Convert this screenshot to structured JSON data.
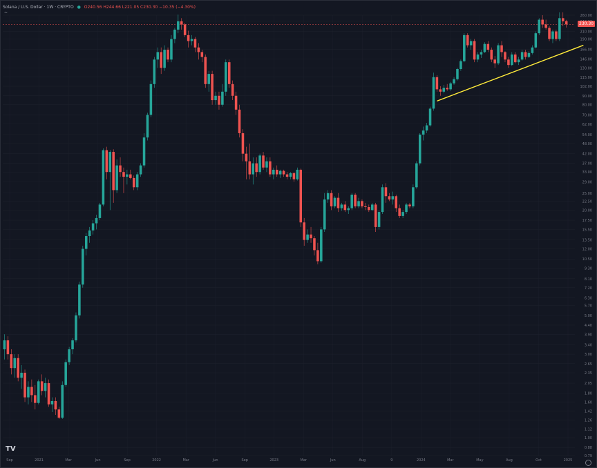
{
  "header": {
    "symbol": "Solana / U.S. Dollar · 1W · CRYPTO",
    "ohlc": "O240.56 H244.66 L221.05 C230.30 −10.35 (−4.30%)",
    "indicator": "~ ",
    "current_price_tag": "230.30"
  },
  "logo_text": "TV",
  "chart_data": {
    "type": "candlestick",
    "scale": "log",
    "ylim": [
      0.79,
      260.0
    ],
    "y_ticks": [
      "260.00",
      "240.00",
      "210.00",
      "190.00",
      "166.00",
      "146.00",
      "130.00",
      "115.00",
      "102.00",
      "90.00",
      "80.00",
      "70.00",
      "62.00",
      "54.00",
      "48.00",
      "42.00",
      "37.00",
      "33.00",
      "29.00",
      "25.00",
      "22.50",
      "20.00",
      "17.50",
      "15.50",
      "13.50",
      "12.00",
      "10.50",
      "9.30",
      "8.10",
      "7.20",
      "6.30",
      "5.70",
      "5.00",
      "4.40",
      "3.90",
      "3.40",
      "3.00",
      "2.65",
      "2.35",
      "2.05",
      "1.80",
      "1.60",
      "1.42",
      "1.26",
      "1.12",
      "1.00",
      "0.88",
      "0.79"
    ],
    "x_ticks": [
      "Sep",
      "2021",
      "Mar",
      "Jun",
      "Sep",
      "2022",
      "Mar",
      "Jun",
      "Sep",
      "2023",
      "Mar",
      "Jun",
      "Aug",
      "9",
      "2024",
      "Mar",
      "May",
      "Aug",
      "Oct",
      "2025"
    ],
    "candles": [
      [
        3.2,
        3.9,
        2.8,
        3.6
      ],
      [
        3.6,
        3.8,
        2.8,
        3.0
      ],
      [
        3.0,
        3.2,
        2.3,
        2.5
      ],
      [
        2.5,
        3.0,
        2.2,
        2.85
      ],
      [
        2.85,
        3.0,
        2.1,
        2.2
      ],
      [
        2.2,
        2.6,
        1.9,
        2.35
      ],
      [
        2.35,
        2.45,
        1.6,
        1.7
      ],
      [
        1.7,
        2.1,
        1.55,
        1.95
      ],
      [
        1.95,
        2.15,
        1.6,
        1.75
      ],
      [
        1.75,
        2.0,
        1.45,
        1.58
      ],
      [
        1.58,
        2.15,
        1.55,
        2.1
      ],
      [
        2.1,
        2.3,
        1.75,
        1.85
      ],
      [
        1.85,
        2.2,
        1.7,
        2.05
      ],
      [
        2.05,
        2.15,
        1.5,
        1.55
      ],
      [
        1.55,
        1.7,
        1.4,
        1.62
      ],
      [
        1.62,
        1.7,
        1.35,
        1.45
      ],
      [
        1.45,
        1.5,
        1.28,
        1.3
      ],
      [
        1.3,
        2.1,
        1.28,
        2.0
      ],
      [
        2.0,
        2.8,
        1.95,
        2.7
      ],
      [
        2.7,
        3.3,
        2.6,
        3.2
      ],
      [
        3.2,
        3.7,
        3.0,
        3.6
      ],
      [
        3.6,
        5.2,
        3.5,
        5.0
      ],
      [
        5.0,
        7.8,
        4.8,
        7.5
      ],
      [
        7.5,
        12.5,
        7.2,
        12.0
      ],
      [
        12.0,
        14.8,
        11.0,
        14.2
      ],
      [
        14.2,
        16.0,
        13.0,
        15.3
      ],
      [
        15.3,
        17.5,
        14.5,
        16.8
      ],
      [
        16.8,
        18.8,
        15.5,
        18.0
      ],
      [
        18.0,
        22.0,
        17.5,
        21.5
      ],
      [
        21.5,
        45.0,
        21.0,
        44.0
      ],
      [
        44.0,
        46.0,
        30.0,
        33.0
      ],
      [
        33.0,
        44.0,
        20.0,
        43.0
      ],
      [
        43.0,
        44.5,
        22.0,
        26.0
      ],
      [
        26.0,
        39.0,
        25.0,
        36.0
      ],
      [
        36.0,
        40.0,
        31.0,
        33.0
      ],
      [
        33.0,
        35.0,
        25.0,
        31.0
      ],
      [
        31.0,
        34.0,
        28.0,
        32.0
      ],
      [
        32.0,
        34.0,
        30.0,
        30.5
      ],
      [
        30.5,
        31.5,
        26.0,
        27.0
      ],
      [
        27.0,
        33.0,
        26.0,
        32.0
      ],
      [
        32.0,
        37.0,
        31.0,
        36.0
      ],
      [
        36.0,
        55.0,
        35.0,
        52.0
      ],
      [
        52.0,
        72.0,
        50.0,
        70.0
      ],
      [
        70.0,
        110.0,
        68.0,
        105.0
      ],
      [
        105.0,
        150.0,
        100.0,
        145.0
      ],
      [
        145.0,
        170.0,
        130.0,
        160.0
      ],
      [
        160.0,
        170.0,
        120.0,
        130.0
      ],
      [
        130.0,
        175.0,
        125.0,
        165.0
      ],
      [
        165.0,
        170.0,
        140.0,
        145.0
      ],
      [
        145.0,
        200.0,
        140.0,
        190.0
      ],
      [
        190.0,
        220.0,
        180.0,
        215.0
      ],
      [
        215.0,
        262.0,
        205.0,
        240.0
      ],
      [
        240.0,
        250.0,
        215.0,
        230.0
      ],
      [
        230.0,
        235.0,
        195.0,
        200.0
      ],
      [
        200.0,
        212.0,
        170.0,
        185.0
      ],
      [
        185.0,
        200.0,
        175.0,
        190.0
      ],
      [
        190.0,
        195.0,
        160.0,
        170.0
      ],
      [
        170.0,
        180.0,
        145.0,
        160.0
      ],
      [
        160.0,
        165.0,
        140.0,
        150.0
      ],
      [
        150.0,
        155.0,
        100.0,
        105.0
      ],
      [
        105.0,
        125.0,
        95.0,
        120.0
      ],
      [
        120.0,
        125.0,
        80.0,
        85.0
      ],
      [
        85.0,
        95.0,
        80.0,
        90.0
      ],
      [
        90.0,
        95.0,
        75.0,
        80.0
      ],
      [
        80.0,
        105.0,
        78.0,
        95.0
      ],
      [
        95.0,
        145.0,
        90.0,
        140.0
      ],
      [
        140.0,
        145.0,
        100.0,
        105.0
      ],
      [
        105.0,
        110.0,
        85.0,
        90.0
      ],
      [
        90.0,
        95.0,
        70.0,
        75.0
      ],
      [
        75.0,
        80.0,
        52.0,
        55.0
      ],
      [
        55.0,
        58.0,
        38.0,
        42.0
      ],
      [
        42.0,
        46.0,
        30.0,
        38.0
      ],
      [
        38.0,
        48.0,
        30.0,
        32.0
      ],
      [
        32.0,
        40.0,
        28.0,
        37.0
      ],
      [
        37.0,
        40.0,
        31.0,
        33.0
      ],
      [
        33.0,
        42.0,
        32.0,
        41.0
      ],
      [
        41.0,
        43.0,
        34.0,
        35.0
      ],
      [
        35.0,
        40.0,
        33.0,
        38.0
      ],
      [
        38.0,
        40.0,
        31.0,
        32.0
      ],
      [
        32.0,
        35.0,
        30.0,
        34.0
      ],
      [
        34.0,
        36.0,
        31.0,
        32.0
      ],
      [
        32.0,
        34.0,
        30.5,
        33.5
      ],
      [
        33.5,
        34.0,
        31.0,
        32.0
      ],
      [
        32.0,
        33.0,
        30.0,
        31.0
      ],
      [
        31.0,
        33.0,
        30.0,
        32.5
      ],
      [
        32.5,
        33.0,
        29.0,
        30.0
      ],
      [
        30.0,
        35.0,
        29.5,
        34.0
      ],
      [
        34.0,
        34.5,
        16.0,
        17.0
      ],
      [
        17.0,
        18.0,
        12.5,
        13.5
      ],
      [
        13.5,
        15.5,
        13.0,
        14.5
      ],
      [
        14.5,
        16.0,
        13.0,
        13.8
      ],
      [
        13.8,
        14.2,
        11.0,
        11.8
      ],
      [
        11.8,
        13.0,
        9.8,
        10.2
      ],
      [
        10.2,
        16.0,
        10.0,
        15.5
      ],
      [
        15.5,
        25.0,
        15.0,
        23.0
      ],
      [
        23.0,
        26.0,
        22.0,
        25.0
      ],
      [
        25.0,
        26.0,
        20.0,
        21.0
      ],
      [
        21.0,
        24.0,
        20.5,
        23.5
      ],
      [
        23.5,
        25.0,
        19.5,
        20.5
      ],
      [
        20.5,
        22.0,
        19.8,
        21.5
      ],
      [
        21.5,
        22.5,
        19.5,
        20.0
      ],
      [
        20.0,
        21.0,
        19.0,
        20.5
      ],
      [
        20.5,
        25.0,
        20.0,
        24.5
      ],
      [
        24.5,
        25.0,
        20.5,
        21.0
      ],
      [
        21.0,
        23.5,
        20.5,
        22.5
      ],
      [
        22.5,
        23.0,
        20.5,
        21.0
      ],
      [
        21.0,
        22.0,
        20.0,
        20.8
      ],
      [
        20.8,
        21.5,
        19.5,
        20.0
      ],
      [
        20.0,
        22.0,
        19.8,
        21.5
      ],
      [
        21.5,
        22.0,
        15.0,
        16.0
      ],
      [
        16.0,
        20.0,
        15.5,
        19.5
      ],
      [
        19.5,
        28.0,
        19.0,
        27.0
      ],
      [
        27.0,
        28.5,
        22.0,
        24.0
      ],
      [
        24.0,
        25.0,
        22.5,
        23.0
      ],
      [
        23.0,
        25.5,
        21.5,
        24.0
      ],
      [
        24.0,
        24.5,
        19.5,
        20.5
      ],
      [
        20.5,
        21.5,
        18.0,
        18.5
      ],
      [
        18.5,
        20.0,
        18.0,
        19.5
      ],
      [
        19.5,
        22.0,
        19.0,
        21.5
      ],
      [
        21.5,
        22.0,
        20.5,
        21.0
      ],
      [
        21.0,
        28.0,
        20.5,
        27.0
      ],
      [
        27.0,
        38.0,
        26.5,
        37.0
      ],
      [
        37.0,
        55.0,
        36.0,
        54.0
      ],
      [
        54.0,
        60.0,
        50.0,
        57.0
      ],
      [
        57.0,
        63.0,
        55.0,
        61.0
      ],
      [
        61.0,
        78.0,
        60.0,
        76.0
      ],
      [
        76.0,
        122.0,
        74.0,
        115.0
      ],
      [
        115.0,
        118.0,
        95.0,
        98.0
      ],
      [
        98.0,
        102.0,
        90.0,
        95.0
      ],
      [
        95.0,
        104.0,
        93.0,
        100.0
      ],
      [
        100.0,
        105.0,
        96.0,
        98.0
      ],
      [
        98.0,
        108.0,
        96.0,
        106.0
      ],
      [
        106.0,
        115.0,
        104.0,
        112.0
      ],
      [
        112.0,
        130.0,
        110.0,
        128.0
      ],
      [
        128.0,
        145.0,
        125.0,
        142.0
      ],
      [
        142.0,
        205.0,
        140.0,
        200.0
      ],
      [
        200.0,
        205.0,
        170.0,
        175.0
      ],
      [
        175.0,
        190.0,
        165.0,
        185.0
      ],
      [
        185.0,
        190.0,
        140.0,
        145.0
      ],
      [
        145.0,
        160.0,
        140.0,
        155.0
      ],
      [
        155.0,
        165.0,
        148.0,
        160.0
      ],
      [
        160.0,
        182.0,
        158.0,
        178.0
      ],
      [
        178.0,
        185.0,
        160.0,
        165.0
      ],
      [
        165.0,
        170.0,
        140.0,
        145.0
      ],
      [
        145.0,
        152.0,
        130.0,
        138.0
      ],
      [
        138.0,
        180.0,
        135.0,
        175.0
      ],
      [
        175.0,
        185.0,
        150.0,
        160.0
      ],
      [
        160.0,
        162.0,
        140.0,
        145.0
      ],
      [
        145.0,
        150.0,
        130.0,
        135.0
      ],
      [
        135.0,
        160.0,
        133.0,
        155.0
      ],
      [
        155.0,
        160.0,
        138.0,
        140.0
      ],
      [
        140.0,
        150.0,
        135.0,
        145.0
      ],
      [
        145.0,
        165.0,
        143.0,
        160.0
      ],
      [
        160.0,
        165.0,
        145.0,
        150.0
      ],
      [
        150.0,
        162.0,
        148.0,
        158.0
      ],
      [
        158.0,
        175.0,
        155.0,
        170.0
      ],
      [
        170.0,
        210.0,
        168.0,
        205.0
      ],
      [
        205.0,
        250.0,
        200.0,
        245.0
      ],
      [
        245.0,
        260.0,
        220.0,
        230.0
      ],
      [
        230.0,
        245.0,
        215.0,
        220.0
      ],
      [
        220.0,
        225.0,
        185.0,
        190.0
      ],
      [
        190.0,
        215.0,
        180.0,
        210.0
      ],
      [
        210.0,
        215.0,
        185.0,
        190.0
      ],
      [
        190.0,
        270.0,
        185.0,
        250.0
      ],
      [
        250.0,
        270.0,
        225.0,
        240.0
      ],
      [
        240.56,
        244.66,
        221.05,
        230.3
      ]
    ],
    "trendline": {
      "start": {
        "index": 127,
        "price": 84
      },
      "end": {
        "index": 170,
        "price": 175
      },
      "color": "#ffeb3b"
    },
    "current_price": 230.3,
    "colors": {
      "up": "#26a69a",
      "down": "#ef5350",
      "background": "#131722",
      "grid": "#1e222d",
      "axis_text": "#787b86",
      "price_line": "#ef5350"
    }
  }
}
